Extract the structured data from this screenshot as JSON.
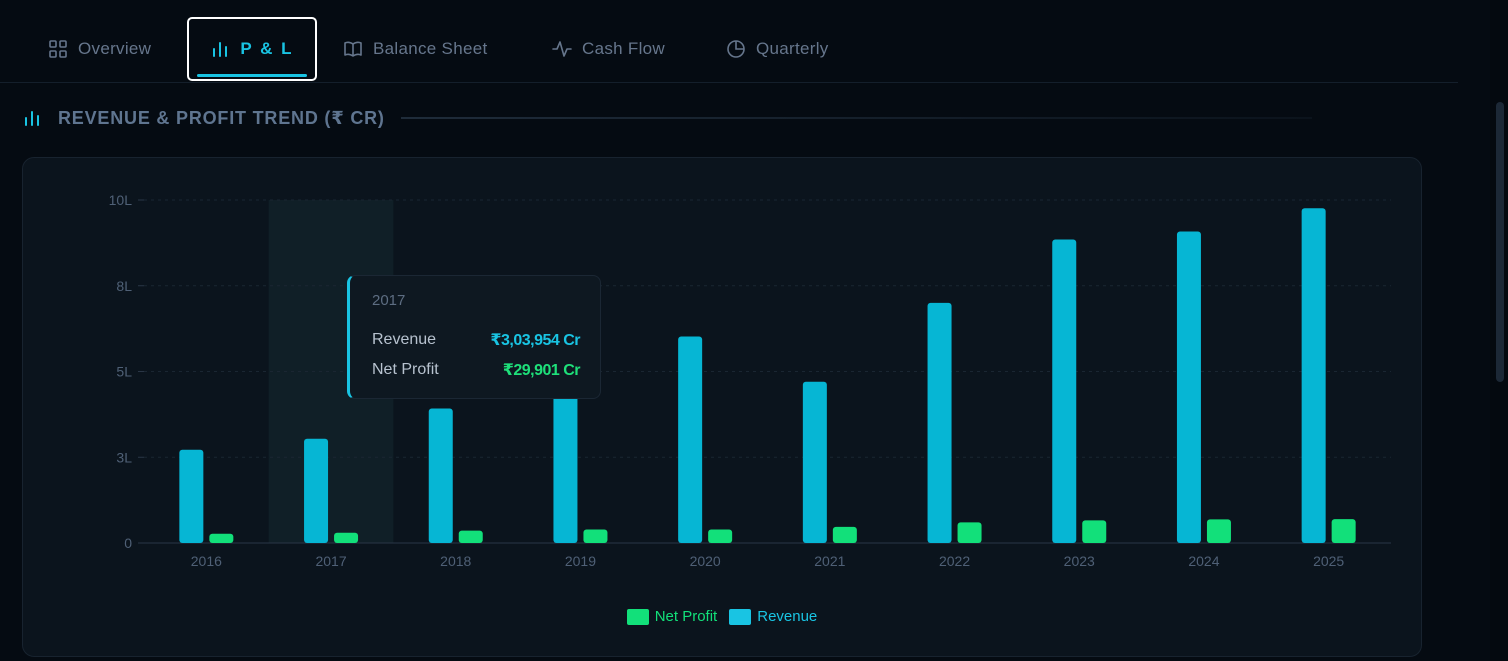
{
  "tabs": [
    {
      "label": "Overview",
      "icon": "grid-icon"
    },
    {
      "label": "P & L",
      "icon": "bar-chart-icon",
      "active": true
    },
    {
      "label": "Balance Sheet",
      "icon": "book-icon"
    },
    {
      "label": "Cash Flow",
      "icon": "pulse-icon"
    },
    {
      "label": "Quarterly",
      "icon": "pie-icon"
    }
  ],
  "section": {
    "title": "REVENUE & PROFIT TREND (₹ CR)"
  },
  "colors": {
    "revenue": "#06b6d4",
    "net_profit": "#12e07a",
    "accent": "#19c4e3"
  },
  "tooltip": {
    "year": "2017",
    "revenue_label": "Revenue",
    "revenue_value": "₹3,03,954 Cr",
    "np_label": "Net Profit",
    "np_value": "₹29,901 Cr"
  },
  "chart_data": {
    "type": "bar",
    "title": "REVENUE & PROFIT TREND (₹ CR)",
    "categories": [
      "2016",
      "2017",
      "2018",
      "2019",
      "2020",
      "2021",
      "2022",
      "2023",
      "2024",
      "2025"
    ],
    "y_tick_labels": [
      "0",
      "3L",
      "5L",
      "8L",
      "10L"
    ],
    "y_tick_values": [
      0,
      250000,
      500000,
      750000,
      1000000
    ],
    "ylim": [
      0,
      1000000
    ],
    "grid": true,
    "legend": "bottom-center",
    "highlighted_category": "2017",
    "series": [
      {
        "name": "Revenue",
        "values": [
          272000,
          303954,
          392000,
          438000,
          602000,
          470000,
          700000,
          885000,
          908000,
          976000
        ]
      },
      {
        "name": "Net Profit",
        "values": [
          27000,
          29901,
          36000,
          39500,
          39500,
          47000,
          60000,
          66000,
          69000,
          69500
        ]
      }
    ]
  },
  "legend": {
    "net_profit": "Net Profit",
    "revenue": "Revenue"
  }
}
